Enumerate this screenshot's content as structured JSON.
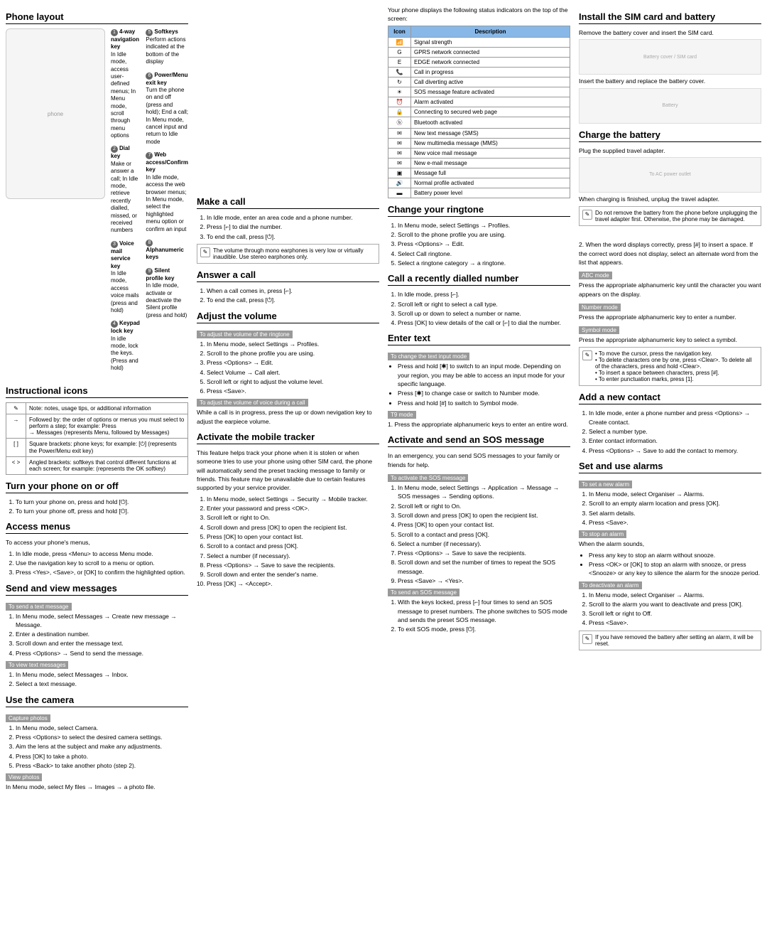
{
  "phone_layout": {
    "title": "Phone layout",
    "keys": [
      {
        "n": "1",
        "title": "4-way navigation key",
        "desc": "In Idle mode, access user-defined menus; In Menu mode, scroll through menu options"
      },
      {
        "n": "2",
        "title": "Dial key",
        "desc": "Make or answer a call; In Idle mode, retrieve recently dialled, missed, or received numbers"
      },
      {
        "n": "3",
        "title": "Voice mail service key",
        "desc": "In Idle mode, access voice mails (press and hold)"
      },
      {
        "n": "4",
        "title": "Keypad lock key",
        "desc": "In idle mode, lock the keys. (Press and hold)"
      },
      {
        "n": "5",
        "title": "Softkeys",
        "desc": "Perform actions indicated at the bottom of the display"
      },
      {
        "n": "6",
        "title": "Power/Menu exit key",
        "desc": "Turn the phone on and off (press and hold); End a call; In Menu mode, cancel input and return to Idle mode"
      },
      {
        "n": "7",
        "title": "Web access/Confirm key",
        "desc": "In Idle mode, access the web browser menus; In Menu mode, select the highlighted menu option or confirm an input"
      },
      {
        "n": "8",
        "title": "Alphanumeric keys",
        "desc": ""
      },
      {
        "n": "9",
        "title": "Silent profile key",
        "desc": "In Idle mode, activate or deactivate the Silent profile (press and hold)"
      }
    ]
  },
  "status": {
    "intro": "Your phone displays the following status indicators on the top of the screen:",
    "head": [
      "Icon",
      "Description"
    ],
    "rows": [
      [
        "📶",
        "Signal strength"
      ],
      [
        "G",
        "GPRS network connected"
      ],
      [
        "E",
        "EDGE network connected"
      ],
      [
        "📞",
        "Call in progress"
      ],
      [
        "↻",
        "Call diverting active"
      ],
      [
        "☀",
        "SOS message feature activated"
      ],
      [
        "⏰",
        "Alarm activated"
      ],
      [
        "🔒",
        "Connecting to secured web page"
      ],
      [
        "ⓑ",
        "Bluetooth activated"
      ],
      [
        "✉",
        "New text message (SMS)"
      ],
      [
        "✉",
        "New multimedia message (MMS)"
      ],
      [
        "✉",
        "New voice mail message"
      ],
      [
        "✉",
        "New e-mail message"
      ],
      [
        "▣",
        "Message full"
      ],
      [
        "🔊",
        "Normal profile activated"
      ],
      [
        "▬",
        "Battery power level"
      ]
    ]
  },
  "instructional": {
    "title": "Instructional icons",
    "rows": [
      [
        "✎",
        "Note: notes, usage tips, or additional information"
      ],
      [
        "→",
        "Followed by: the order of options or menus you must select to perform a step; for example: Press <Menu> → Messages (represents Menu, followed by Messages)"
      ],
      [
        "[ ]",
        "Square brackets: phone keys; for example: [⏻] (represents the Power/Menu exit key)"
      ],
      [
        "< >",
        "Angled brackets: softkeys that control different functions at each screen; for example: <OK> (represents the OK softkey)"
      ]
    ]
  },
  "turn": {
    "title": "Turn your phone on or off",
    "items": [
      "To turn your phone on, press and hold [⏻].",
      "To turn your phone off, press and hold [⏻]."
    ]
  },
  "access": {
    "title": "Access menus",
    "intro": "To access your phone's menus,",
    "items": [
      "In Idle mode, press <Menu> to access Menu mode.",
      "Use the navigation key to scroll to a menu or option.",
      "Press <Yes>, <Save>, or [OK] to confirm the highlighted option."
    ]
  },
  "send": {
    "title": "Send and view messages",
    "tag1": "To send a text message",
    "items1": [
      "In Menu mode, select Messages → Create new message → Message.",
      "Enter a destination number.",
      "Scroll down and enter the message text.",
      "Press <Options> → Send to send the message."
    ],
    "tag2": "To view text messages",
    "items2": [
      "In Menu mode, select Messages → Inbox.",
      "Select a text message."
    ]
  },
  "camera": {
    "title": "Use the camera",
    "tag1": "Capture photos",
    "items": [
      "In Menu mode, select Camera.",
      "Press <Options> to select the desired camera settings.",
      "Aim the lens at the subject and make any adjustments.",
      "Press [OK] to take a photo.",
      "Press <Back> to take another photo (step 2)."
    ],
    "tag2": "View photos",
    "p": "In Menu mode, select My files → Images → a photo file."
  },
  "makecall": {
    "title": "Make a call",
    "items": [
      "In Idle mode, enter an area code and a phone number.",
      "Press [⌐] to dial the number.",
      "To end the call, press [⏻]."
    ],
    "note": "The volume through mono earphones is very low or virtually inaudible. Use stereo earphones only."
  },
  "answer": {
    "title": "Answer a call",
    "items": [
      "When a call comes in, press [⌐].",
      "To end the call, press [⏻]."
    ]
  },
  "volume": {
    "title": "Adjust the volume",
    "tag1": "To adjust the volume of the ringtone",
    "items": [
      "In Menu mode, select Settings → Profiles.",
      "Scroll to the phone profile you are using.",
      "Press <Options> → Edit.",
      "Select Volume → Call alert.",
      "Scroll left or right to adjust the volume level.",
      "Press <Save>."
    ],
    "tag2": "To adjust the volume of voice during a call",
    "p": "While a call is in progress, press the up or down nevigation key to adjust the earpiece volume."
  },
  "tracker": {
    "title": "Activate the mobile tracker",
    "intro": "This feature helps track your phone when it is stolen or when someone tries to use your phone using other SIM card, the phone will automatically send the preset tracking message to family or friends. This feature may be unavailable due to certain features supported by your service provider.",
    "items": [
      "In Menu mode, select Settings → Security → Mobile tracker.",
      "Enter your password and press <OK>.",
      "Scroll left or right to On.",
      "Scroll down and press [OK] to open the recipient list.",
      "Press [OK] to open your contact list.",
      "Scroll to a contact and press [OK].",
      "Select a number (if necessary).",
      "Press <Options> → Save to save the recipients.",
      "Scroll down and enter the sender's name.",
      "Press [OK] → <Accept>."
    ]
  },
  "ringtone": {
    "title": "Change your ringtone",
    "items": [
      "In Menu mode, select Settings → Profiles.",
      "Scroll to the phone profile you are using.",
      "Press <Options> → Edit.",
      "Select Call ringtone.",
      "Select a ringtone category → a ringtone."
    ]
  },
  "recent": {
    "title": "Call a recently dialled number",
    "items": [
      "In Idle mode, press [⌐].",
      "Scroll left or right to select a call type.",
      "Scroll up or down to select a number or name.",
      "Press [OK] to view details of the call or [⌐] to dial the number."
    ]
  },
  "enter": {
    "title": "Enter text",
    "tag1": "To change the text input mode",
    "bullets": [
      "Press and hold [✱] to switch to an input mode. Depending on your region, you may be able to access an input mode for your specific language.",
      "Press [✱] to change case or switch to Number mode.",
      "Press and hold [#] to switch to Symbol mode."
    ],
    "tag2": "T9 mode",
    "p": "1. Press the appropriate alphanumeric keys to enter an entire word."
  },
  "sos": {
    "title": "Activate and send an SOS message",
    "intro": "In an emergency, you can send SOS messages to your family or friends for help.",
    "tag1": "To activate the SOS message",
    "items": [
      "In Menu mode, select Settings → Application → Message → SOS messages → Sending options.",
      "Scroll left or right to On.",
      "Scroll down and press [OK] to open the recipient list.",
      "Press [OK] to open your contact list.",
      "Scroll to a contact and press [OK].",
      "Select a number (if necessary).",
      "Press <Options> → Save to save the recipients.",
      "Scroll down and set the number of times to repeat the SOS message.",
      "Press <Save> → <Yes>."
    ],
    "tag2": "To send an SOS message",
    "items2": [
      "With the keys locked, press [⌐] four times to send an SOS message to preset numbers. The phone switches to SOS mode and sends the preset SOS message.",
      "To exit SOS mode, press [⏻]."
    ]
  },
  "install": {
    "title": "Install the SIM card and battery",
    "items": [
      "Remove the battery cover and insert the SIM card.",
      "Insert the battery and replace the battery cover."
    ]
  },
  "charge": {
    "title": "Charge the battery",
    "items": [
      "Plug the supplied travel adapter.",
      "When charging is finished, unplug the travel adapter."
    ],
    "note": "Do not remove the battery from the phone before unplugging the travel adapter first. Otherwise, the phone may be damaged."
  },
  "textcont": {
    "p1": "2. When the word displays correctly, press [#] to insert a space. If the correct word does not display, select an alternate word from the list that appears.",
    "abc_tag": "ABC mode",
    "abc": "Press the appropriate alphanumeric key until the character you want appears on the display.",
    "num_tag": "Number mode",
    "num": "Press the appropriate alphanumeric key to enter a number.",
    "sym_tag": "Symbol mode",
    "sym": "Press the appropriate alphanumeric key to select a symbol.",
    "note": "• To move the cursor, press the navigation key.\n• To delete characters one by one, press <Clear>. To delete all of the characters, press and hold <Clear>.\n• To insert a space between characters, press [#].\n• To enter punctuation marks, press [1]."
  },
  "contact": {
    "title": "Add a new contact",
    "items": [
      "In Idle mode, enter a phone number and press <Options> → Create contact.",
      "Select a number type.",
      "Enter contact information.",
      "Press <Options> → Save to add the contact to memory."
    ]
  },
  "alarms": {
    "title": "Set and use alarms",
    "tag1": "To set a new alarm",
    "items1": [
      "In Menu mode, select Organiser → Alarms.",
      "Scroll to an empty alarm location and press [OK].",
      "Set alarm details.",
      "Press <Save>."
    ],
    "tag2": "To stop an alarm",
    "p2": "When the alarm sounds,",
    "b2": [
      "Press any key to stop an alarm without snooze.",
      "Press <OK> or [OK] to stop an alarm with snooze, or press <Snooze> or any key to silence the alarm for the snooze period."
    ],
    "tag3": "To deactivate an alarm",
    "items3": [
      "In Menu mode, select Organiser → Alarms.",
      "Scroll to the alarm you want to deactivate and press [OK].",
      "Scroll left or right to Off.",
      "Press <Save>."
    ],
    "note": "If you have removed the battery after setting an alarm, it will be reset."
  }
}
